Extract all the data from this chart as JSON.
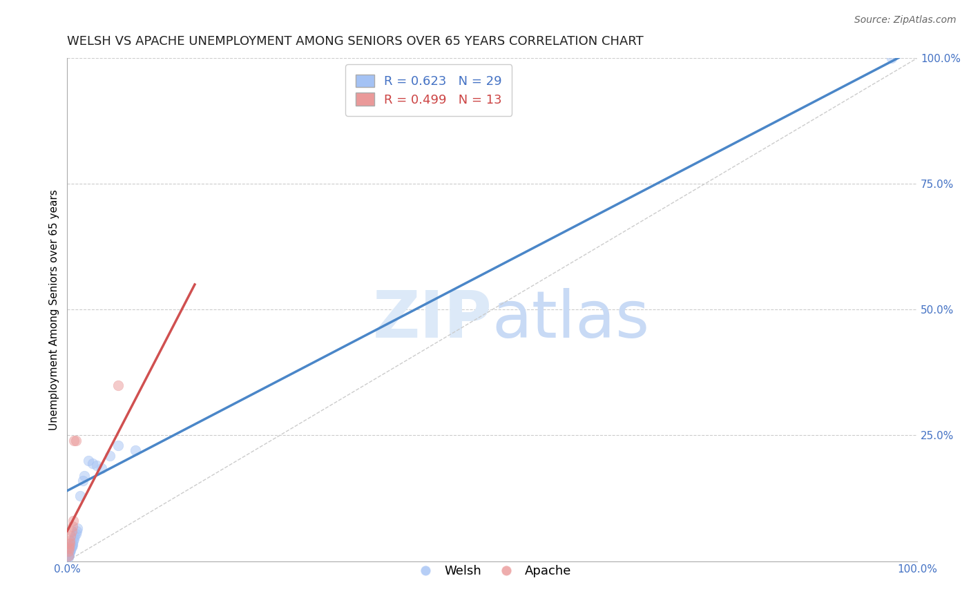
{
  "title": "WELSH VS APACHE UNEMPLOYMENT AMONG SENIORS OVER 65 YEARS CORRELATION CHART",
  "source": "Source: ZipAtlas.com",
  "ylabel": "Unemployment Among Seniors over 65 years",
  "xlim": [
    0,
    1.0
  ],
  "ylim": [
    0,
    1.0
  ],
  "xtick_labels": [
    "0.0%",
    "100.0%"
  ],
  "ytick_labels": [
    "25.0%",
    "50.0%",
    "75.0%",
    "100.0%"
  ],
  "ytick_positions": [
    0.25,
    0.5,
    0.75,
    1.0
  ],
  "xtick_positions": [
    0.0,
    1.0
  ],
  "welsh_R": 0.623,
  "welsh_N": 29,
  "apache_R": 0.499,
  "apache_N": 13,
  "welsh_color": "#a4c2f4",
  "apache_color": "#ea9999",
  "welsh_line_color": "#4a86c8",
  "apache_line_color": "#d05050",
  "diagonal_color": "#cccccc",
  "background_color": "#ffffff",
  "welsh_x": [
    0.001,
    0.001,
    0.002,
    0.002,
    0.003,
    0.003,
    0.004,
    0.004,
    0.005,
    0.005,
    0.006,
    0.006,
    0.007,
    0.008,
    0.009,
    0.01,
    0.011,
    0.012,
    0.015,
    0.018,
    0.02,
    0.025,
    0.03,
    0.035,
    0.04,
    0.05,
    0.06,
    0.08,
    0.97
  ],
  "welsh_y": [
    0.008,
    0.01,
    0.012,
    0.015,
    0.018,
    0.02,
    0.022,
    0.025,
    0.028,
    0.03,
    0.032,
    0.035,
    0.04,
    0.045,
    0.05,
    0.055,
    0.06,
    0.065,
    0.13,
    0.16,
    0.17,
    0.2,
    0.195,
    0.19,
    0.185,
    0.21,
    0.23,
    0.22,
    1.0
  ],
  "apache_x": [
    0.001,
    0.001,
    0.002,
    0.002,
    0.003,
    0.003,
    0.004,
    0.005,
    0.006,
    0.007,
    0.008,
    0.01,
    0.06
  ],
  "apache_y": [
    0.01,
    0.02,
    0.025,
    0.03,
    0.035,
    0.04,
    0.05,
    0.06,
    0.07,
    0.08,
    0.24,
    0.24,
    0.35
  ],
  "welsh_line_x0": 0.0,
  "welsh_line_y0": 0.14,
  "welsh_line_x1": 1.0,
  "welsh_line_y1": 1.02,
  "apache_line_x0": 0.0,
  "apache_line_y0": 0.06,
  "apache_line_x1": 0.15,
  "apache_line_y1": 0.55,
  "title_fontsize": 13,
  "axis_label_fontsize": 11,
  "tick_fontsize": 11,
  "legend_fontsize": 13,
  "source_fontsize": 10,
  "marker_size": 110,
  "marker_alpha": 0.5,
  "marker_linewidth": 0.5
}
